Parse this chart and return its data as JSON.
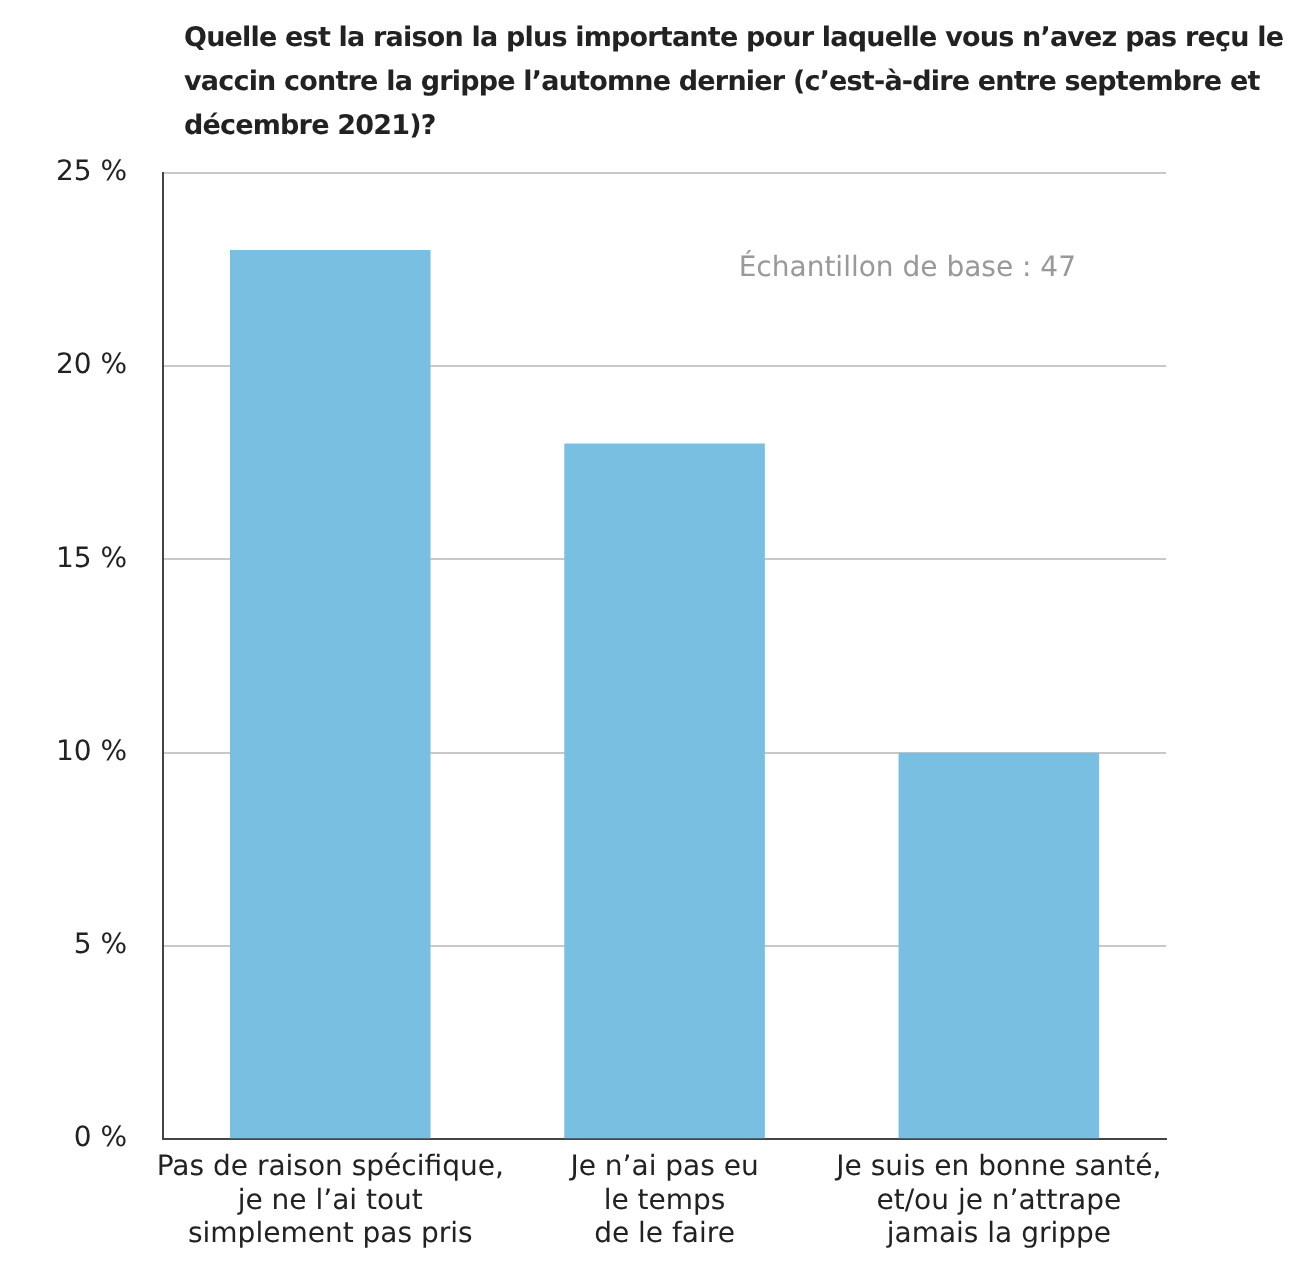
{
  "chart_data": {
    "type": "bar",
    "title": "Quelle est la raison la plus importante pour laquelle vous n’avez pas reçu le vaccin contre la grippe l’automne dernier (c’est-à-dire entre septembre et décembre 2021)?",
    "categories": [
      "Pas de raison spécifique,\nje ne l’ai tout\nsimplement pas pris",
      "Je n’ai pas eu\nle temps\nde le faire",
      "Je suis en bonne santé,\net/ou je n’attrape\njamais la grippe"
    ],
    "values": [
      23,
      18,
      10
    ],
    "color": "#79bfe1",
    "ylim": [
      0,
      25
    ],
    "yticks": [
      {
        "value": 0,
        "label": "0 %"
      },
      {
        "value": 5,
        "label": "5 %"
      },
      {
        "value": 10,
        "label": "10 %"
      },
      {
        "value": 15,
        "label": "15 %"
      },
      {
        "value": 20,
        "label": "20 %"
      },
      {
        "value": 25,
        "label": "25 %"
      }
    ],
    "grid": "y",
    "legend": false,
    "annotations": [
      "Échantillon de base : 47"
    ]
  }
}
